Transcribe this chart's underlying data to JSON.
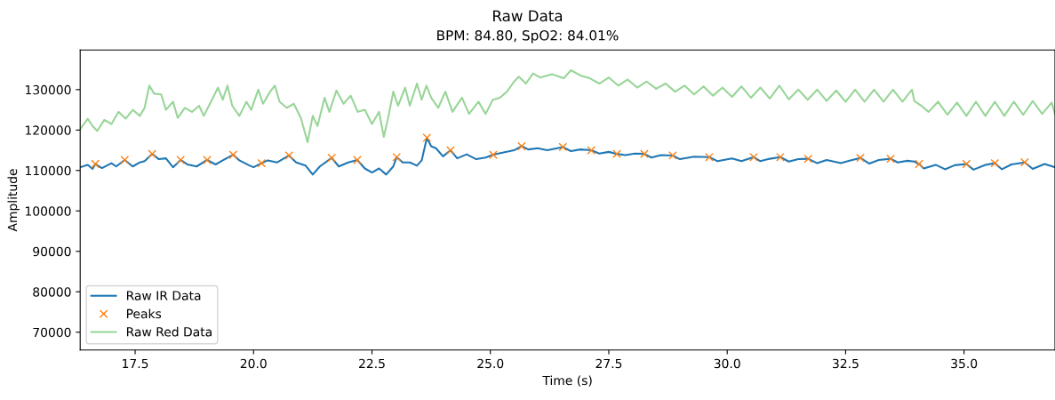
{
  "chart_data": {
    "type": "line",
    "title": "Raw Data",
    "subtitle": "BPM: 84.80, SpO2: 84.01%",
    "xlabel": "Time (s)",
    "ylabel": "Amplitude",
    "xlim": [
      16.34,
      36.92
    ],
    "ylim": [
      65600,
      139800
    ],
    "xticks": [
      17.5,
      {
        "value": 20,
        "label": "20.0"
      },
      22.5,
      {
        "value": 25,
        "label": "25.0"
      },
      27.5,
      {
        "value": 30,
        "label": "30.0"
      },
      32.5,
      {
        "value": 35,
        "label": "35.0"
      }
    ],
    "yticks": [
      70000,
      80000,
      90000,
      100000,
      110000,
      120000,
      130000
    ],
    "grid": false,
    "legend": "bottom left",
    "series": [
      {
        "name": "Raw IR Data",
        "color": "#1f77b4",
        "x": [
          16.34,
          16.5,
          16.6,
          16.66,
          16.8,
          17.0,
          17.1,
          17.28,
          17.45,
          17.6,
          17.7,
          17.86,
          18.0,
          18.15,
          18.3,
          18.46,
          18.6,
          18.8,
          19.02,
          19.2,
          19.35,
          19.57,
          19.7,
          19.9,
          20.0,
          20.17,
          20.3,
          20.5,
          20.75,
          20.9,
          21.1,
          21.25,
          21.4,
          21.65,
          21.8,
          22.0,
          22.19,
          22.35,
          22.5,
          22.65,
          22.8,
          22.95,
          23.02,
          23.15,
          23.3,
          23.45,
          23.55,
          23.66,
          23.75,
          23.85,
          24.0,
          24.16,
          24.3,
          24.5,
          24.7,
          24.9,
          25.06,
          25.3,
          25.5,
          25.66,
          25.8,
          26.0,
          26.2,
          26.53,
          26.7,
          26.9,
          27.13,
          27.3,
          27.5,
          27.67,
          27.85,
          28.05,
          28.25,
          28.4,
          28.6,
          28.85,
          29.0,
          29.3,
          29.62,
          29.8,
          30.1,
          30.3,
          30.56,
          30.7,
          30.9,
          31.12,
          31.3,
          31.5,
          31.71,
          31.9,
          32.1,
          32.4,
          32.6,
          32.81,
          33.0,
          33.2,
          33.45,
          33.6,
          33.8,
          33.95,
          34.05,
          34.15,
          34.4,
          34.6,
          34.8,
          35.05,
          35.2,
          35.45,
          35.65,
          35.8,
          36.0,
          36.28,
          36.45,
          36.7,
          36.92
        ],
        "values": [
          110800,
          111400,
          110400,
          111600,
          110600,
          111800,
          111000,
          112600,
          111000,
          112000,
          112300,
          114100,
          112800,
          113000,
          110800,
          112600,
          111500,
          111000,
          112600,
          111500,
          112500,
          113900,
          112500,
          111300,
          110800,
          111800,
          112500,
          112000,
          113700,
          112000,
          111200,
          109000,
          111000,
          113100,
          111000,
          112000,
          112600,
          110500,
          109500,
          110500,
          109000,
          111000,
          113300,
          112000,
          112000,
          111200,
          112500,
          118100,
          116000,
          115500,
          113500,
          115000,
          113000,
          114000,
          112800,
          113200,
          113900,
          114500,
          115000,
          116000,
          115200,
          115500,
          115000,
          115800,
          114800,
          115200,
          115000,
          114200,
          114600,
          114100,
          113800,
          114200,
          114100,
          113200,
          113800,
          113700,
          112800,
          113400,
          113300,
          112300,
          113000,
          112300,
          113300,
          112300,
          112900,
          113300,
          112200,
          112800,
          112900,
          111800,
          112600,
          111800,
          112500,
          113100,
          111700,
          112600,
          112900,
          112000,
          112400,
          112200,
          111600,
          110500,
          111400,
          110300,
          111300,
          111600,
          110200,
          111400,
          111800,
          110300,
          111500,
          112000,
          110400,
          111600,
          110800
        ]
      },
      {
        "name": "Peaks",
        "type": "scatter",
        "marker": "cross",
        "color": "#ff7f0e",
        "x": [
          16.66,
          17.28,
          17.86,
          18.46,
          19.02,
          19.57,
          20.17,
          20.75,
          21.65,
          22.19,
          23.02,
          23.66,
          24.16,
          25.06,
          25.66,
          26.53,
          27.13,
          27.67,
          28.25,
          28.85,
          29.62,
          30.56,
          31.12,
          31.71,
          32.81,
          33.45,
          34.05,
          35.05,
          35.65,
          36.28
        ],
        "values": [
          111600,
          112600,
          114100,
          112600,
          112600,
          113900,
          111800,
          113700,
          113100,
          112600,
          113300,
          118100,
          115000,
          113900,
          116000,
          115800,
          115000,
          114100,
          114100,
          113700,
          113300,
          113300,
          113300,
          112900,
          113100,
          112900,
          111600,
          111600,
          111800,
          112000
        ]
      },
      {
        "name": "Raw Red Data",
        "color": "#98d598",
        "x": [
          16.34,
          16.5,
          16.6,
          16.7,
          16.85,
          17.0,
          17.15,
          17.3,
          17.45,
          17.6,
          17.7,
          17.8,
          17.9,
          18.05,
          18.15,
          18.3,
          18.4,
          18.55,
          18.7,
          18.85,
          18.95,
          19.1,
          19.25,
          19.35,
          19.45,
          19.55,
          19.7,
          19.85,
          19.95,
          20.1,
          20.2,
          20.35,
          20.45,
          20.55,
          20.7,
          20.85,
          21.0,
          21.14,
          21.25,
          21.35,
          21.5,
          21.6,
          21.75,
          21.9,
          22.05,
          22.2,
          22.35,
          22.5,
          22.65,
          22.75,
          22.85,
          22.95,
          23.05,
          23.2,
          23.3,
          23.45,
          23.55,
          23.65,
          23.75,
          23.9,
          24.05,
          24.2,
          24.4,
          24.55,
          24.75,
          24.9,
          25.05,
          25.2,
          25.35,
          25.5,
          25.6,
          25.75,
          25.9,
          26.05,
          26.3,
          26.55,
          26.7,
          26.9,
          27.1,
          27.3,
          27.5,
          27.7,
          27.9,
          28.1,
          28.3,
          28.5,
          28.7,
          28.9,
          29.1,
          29.3,
          29.5,
          29.7,
          29.9,
          30.1,
          30.3,
          30.5,
          30.7,
          30.9,
          31.1,
          31.3,
          31.5,
          31.7,
          31.9,
          32.1,
          32.3,
          32.5,
          32.7,
          32.9,
          33.1,
          33.3,
          33.5,
          33.7,
          33.9,
          33.95,
          34.1,
          34.25,
          34.45,
          34.65,
          34.85,
          35.05,
          35.25,
          35.45,
          35.65,
          35.85,
          36.05,
          36.25,
          36.45,
          36.65,
          36.85,
          36.92
        ],
        "values": [
          120200,
          122800,
          121000,
          119800,
          122500,
          121500,
          124500,
          122800,
          125000,
          123500,
          125500,
          131000,
          129000,
          128800,
          125000,
          127000,
          123000,
          125500,
          124500,
          126000,
          123500,
          127000,
          130500,
          127500,
          131000,
          126000,
          123500,
          127000,
          125000,
          130000,
          126500,
          129500,
          131000,
          127000,
          125500,
          126500,
          123000,
          117000,
          123500,
          121000,
          128000,
          124500,
          129800,
          126500,
          128500,
          124500,
          125000,
          121500,
          124500,
          118300,
          123500,
          129500,
          126000,
          130500,
          126000,
          131500,
          127500,
          131000,
          128000,
          125500,
          129500,
          124500,
          128000,
          124000,
          127000,
          124000,
          127500,
          128000,
          129500,
          132000,
          133200,
          131500,
          134000,
          133000,
          133800,
          132800,
          134800,
          133500,
          132800,
          131500,
          133000,
          131000,
          132500,
          130500,
          132000,
          130200,
          131500,
          129500,
          131000,
          128800,
          130800,
          128500,
          130500,
          128200,
          130800,
          128000,
          130500,
          127800,
          131000,
          127600,
          130000,
          127500,
          130000,
          127200,
          129800,
          127000,
          130000,
          127000,
          130000,
          127000,
          130000,
          127000,
          130000,
          127200,
          126000,
          124500,
          127000,
          123800,
          126800,
          123500,
          127000,
          123500,
          127000,
          123500,
          127000,
          123800,
          127200,
          124000,
          126800,
          124000
        ]
      }
    ]
  }
}
